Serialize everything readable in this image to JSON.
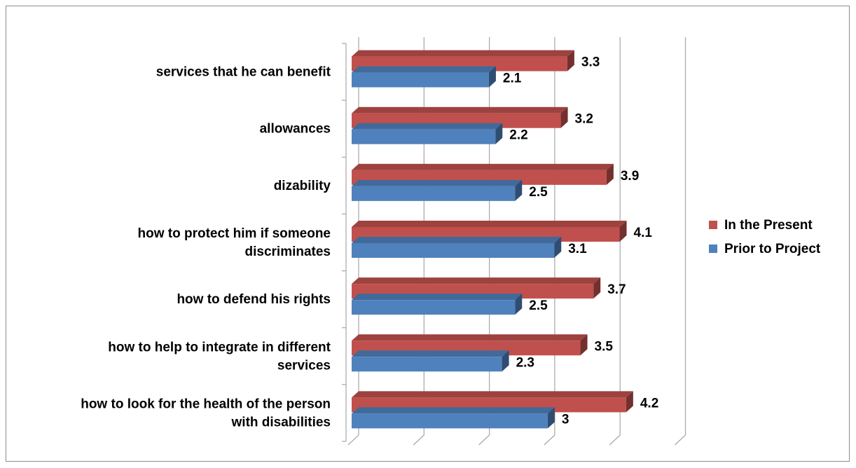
{
  "chart_data": {
    "type": "bar",
    "orientation": "horizontal",
    "categories": [
      [
        "services that he can benefit"
      ],
      [
        "allowances"
      ],
      [
        "dizability"
      ],
      [
        "how to  protect him  if someone",
        "discriminates"
      ],
      [
        "how to defend  his rights"
      ],
      [
        "how to help to integrate in different",
        "services"
      ],
      [
        "how to look for the health of the person",
        "with disabilities"
      ]
    ],
    "series": [
      {
        "name": "In the Present",
        "color": "#C0504D",
        "values": [
          3.3,
          3.2,
          3.9,
          4.1,
          3.7,
          3.5,
          4.2
        ],
        "labels": [
          "3.3",
          "3.2",
          "3.9",
          "4.1",
          "3.7",
          "3.5",
          "4.2"
        ]
      },
      {
        "name": "Prior to Project",
        "color": "#4F81BD",
        "values": [
          2.1,
          2.2,
          2.5,
          3.1,
          2.5,
          2.3,
          3
        ],
        "labels": [
          "2.1",
          "2.2",
          "2.5",
          "3.1",
          "2.5",
          "2.3",
          "3"
        ]
      }
    ],
    "xlim": [
      0,
      5
    ],
    "grid": true,
    "legend_position": "right",
    "title": "",
    "xlabel": "",
    "ylabel": ""
  }
}
